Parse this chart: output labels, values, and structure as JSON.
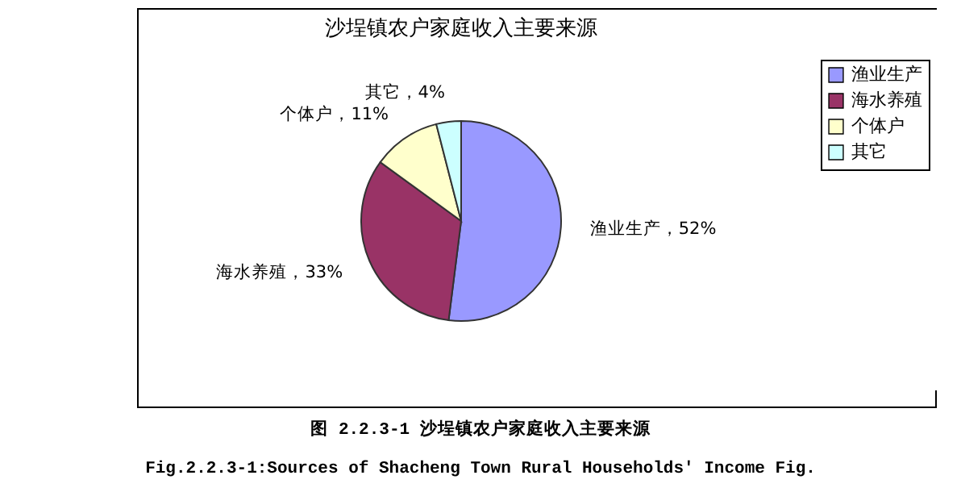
{
  "chart_data": {
    "type": "pie",
    "title": "沙埕镇农户家庭收入主要来源",
    "categories": [
      "渔业生产",
      "海水养殖",
      "个体户",
      "其它"
    ],
    "values": [
      52,
      33,
      11,
      4
    ],
    "colors": [
      "#9999ff",
      "#993366",
      "#ffffcc",
      "#ccffff"
    ],
    "value_labels": [
      "渔业生产，52%",
      "海水养殖，33%",
      "个体户，11%",
      "其它，4%"
    ],
    "legend": "right",
    "annotations": [
      "图 2.2.3-1 沙埕镇农户家庭收入主要来源",
      "Fig.2.2.3-1:Sources of Shacheng Town Rural Households' Income Fig."
    ]
  }
}
